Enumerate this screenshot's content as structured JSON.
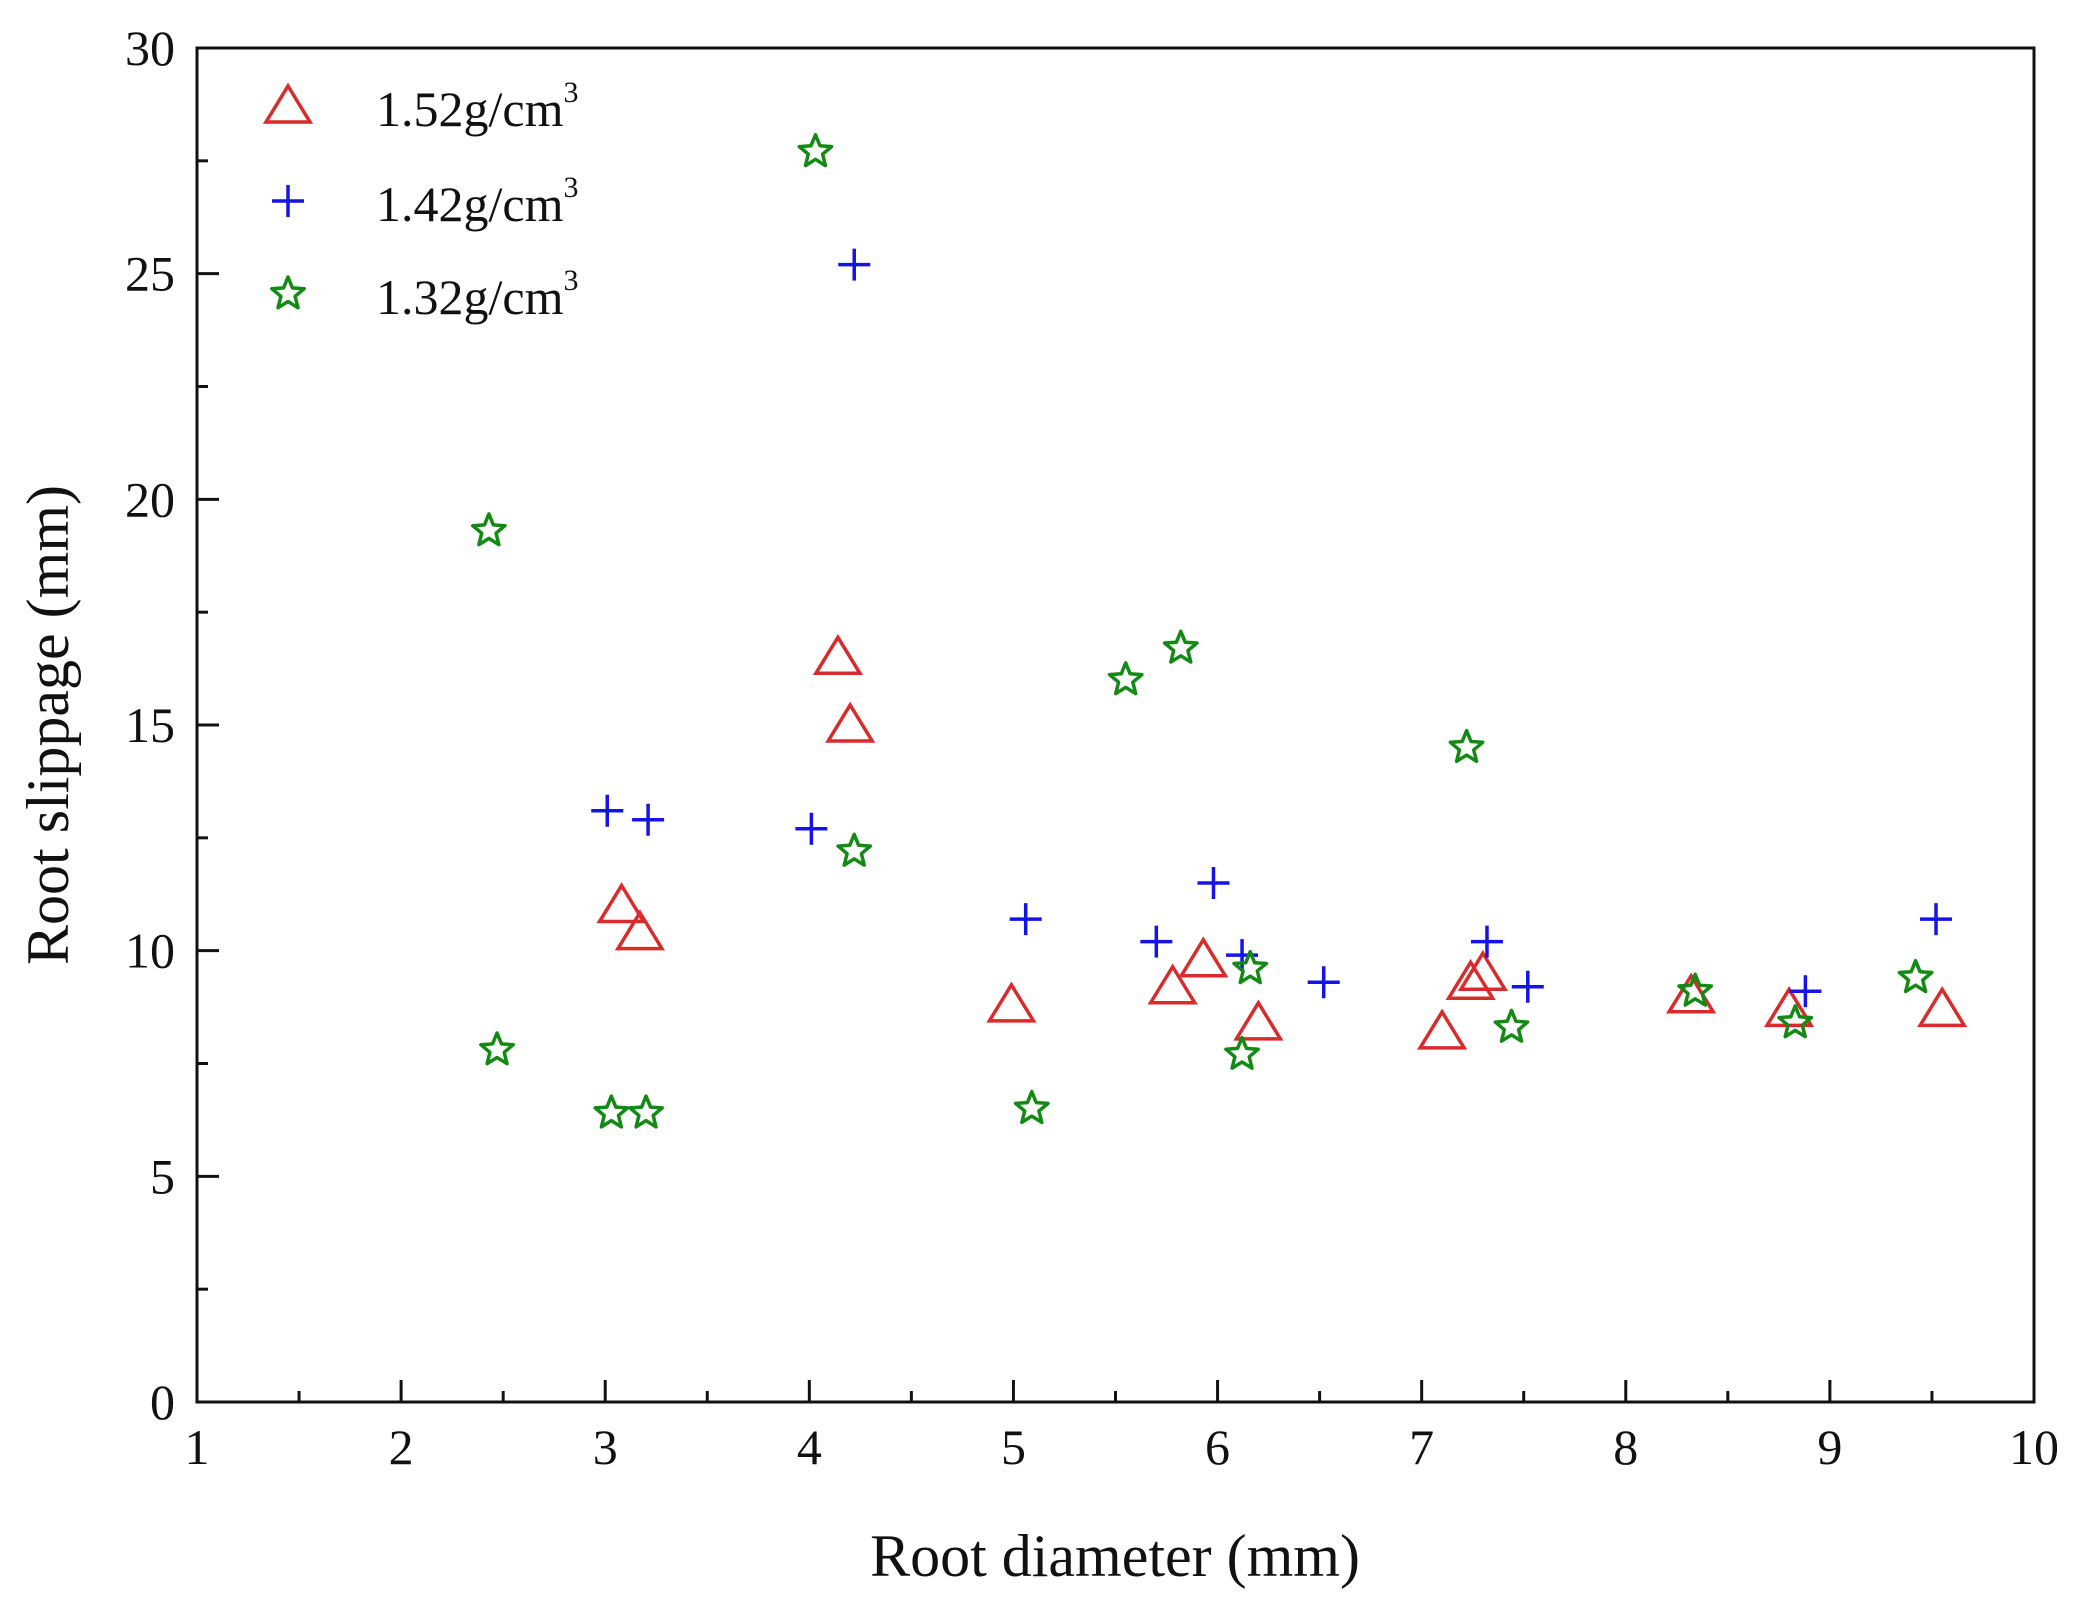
{
  "chart_data": {
    "type": "scatter",
    "title": "",
    "xlabel": "Root diameter (mm)",
    "ylabel": "Root slippage (mm)",
    "xlim": [
      1,
      10
    ],
    "ylim": [
      0,
      30
    ],
    "xticks": [
      1,
      2,
      3,
      4,
      5,
      6,
      7,
      8,
      9,
      10
    ],
    "yticks": [
      0,
      5,
      10,
      15,
      20,
      25,
      30
    ],
    "grid": false,
    "legend_position": "top-left",
    "series": [
      {
        "name": "1.52g/cm3",
        "legend_text": "1.52g/cm",
        "legend_sup": "3",
        "marker": "triangle",
        "color": "#d92b2b",
        "x": [
          3.08,
          3.17,
          4.14,
          4.2,
          4.99,
          5.78,
          5.93,
          6.2,
          7.1,
          7.24,
          7.3,
          8.32,
          8.8,
          9.55
        ],
        "y": [
          11.0,
          10.4,
          16.5,
          15.0,
          8.8,
          9.2,
          9.8,
          8.4,
          8.2,
          9.3,
          9.5,
          9.0,
          8.7,
          8.7
        ]
      },
      {
        "name": "1.42g/cm3",
        "legend_text": "1.42g/cm",
        "legend_sup": "3",
        "marker": "plus",
        "color": "#1414e6",
        "x": [
          3.01,
          3.21,
          4.01,
          4.22,
          5.06,
          5.7,
          5.98,
          6.12,
          6.52,
          7.32,
          7.52,
          8.88,
          9.52
        ],
        "y": [
          13.1,
          12.9,
          12.7,
          25.2,
          10.7,
          10.2,
          11.5,
          9.9,
          9.3,
          10.2,
          9.2,
          9.1,
          10.7
        ]
      },
      {
        "name": "1.32g/cm3",
        "legend_text": "1.32g/cm",
        "legend_sup": "3",
        "marker": "star",
        "color": "#138a13",
        "x": [
          2.43,
          2.47,
          3.03,
          3.2,
          4.03,
          4.22,
          5.09,
          5.55,
          5.82,
          6.12,
          6.16,
          7.22,
          7.44,
          8.34,
          8.83,
          9.42
        ],
        "y": [
          19.3,
          7.8,
          6.4,
          6.4,
          27.7,
          12.2,
          6.5,
          16.0,
          16.7,
          7.7,
          9.6,
          14.5,
          8.3,
          9.1,
          8.4,
          9.4
        ]
      }
    ]
  }
}
